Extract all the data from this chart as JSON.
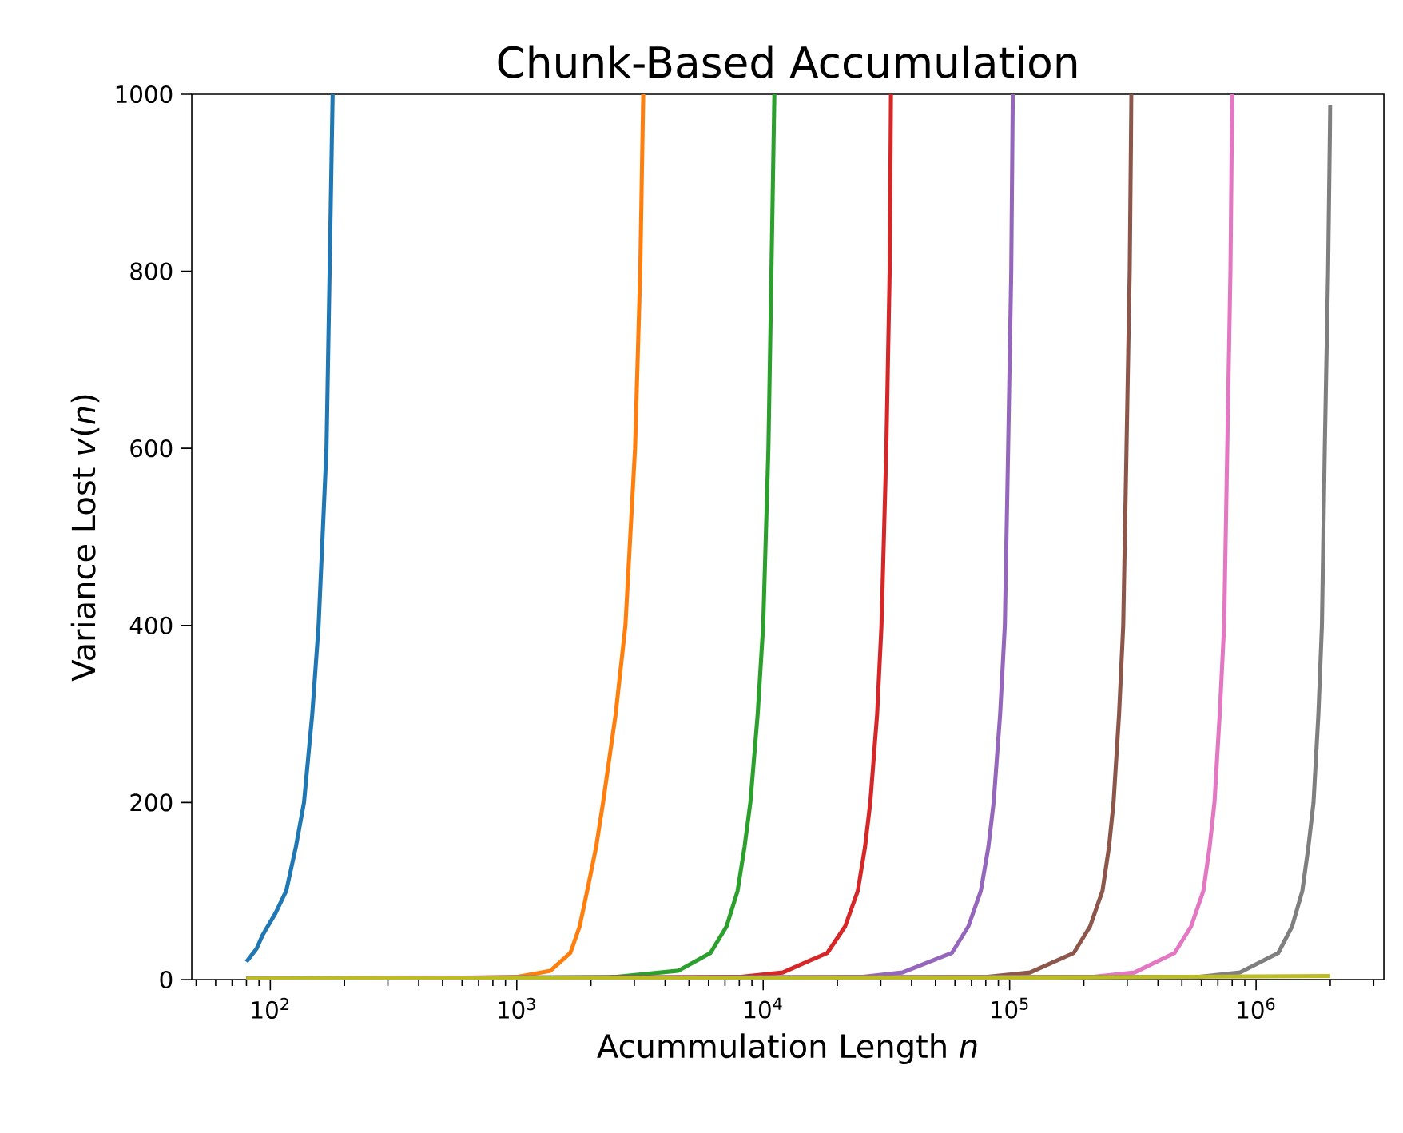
{
  "chart_data": {
    "type": "line",
    "title": "Chunk-Based Accumulation",
    "xlabel": "Acummulation Length *n*",
    "ylabel": "Variance Lost *v*(*n*)",
    "log": "x",
    "xlim": [
      48,
      3300000
    ],
    "ylim": [
      0,
      1000
    ],
    "xticks": [
      {
        "value": 100,
        "label": "10$^{2}$"
      },
      {
        "value": 1000,
        "label": "10$^{3}$"
      },
      {
        "value": 10000,
        "label": "10$^{4}$"
      },
      {
        "value": 100000,
        "label": "10$^{5}$"
      },
      {
        "value": 1000000,
        "label": "10$^{6}$"
      }
    ],
    "yticks": [
      0,
      200,
      400,
      600,
      800,
      1000
    ],
    "marker": "none",
    "line_style": "solid",
    "series": [
      {
        "color": "#1f77b4",
        "x": [
          80,
          88,
          93,
          105,
          116,
          127,
          137,
          148,
          157,
          169,
          174,
          179
        ],
        "values": [
          20,
          35,
          50,
          75,
          100,
          150,
          200,
          300,
          400,
          600,
          800,
          1000
        ]
      },
      {
        "color": "#ff7f0e",
        "x": [
          80,
          600,
          1000,
          1370,
          1650,
          1800,
          1930,
          2100,
          2240,
          2520,
          2760,
          3020,
          3170,
          3260
        ],
        "values": [
          1,
          2,
          3,
          10,
          30,
          60,
          100,
          150,
          200,
          300,
          400,
          600,
          800,
          1000
        ]
      },
      {
        "color": "#2ca02c",
        "x": [
          80,
          2500,
          4530,
          6110,
          7100,
          7870,
          8400,
          8870,
          9500,
          10000,
          10500,
          10800,
          11100
        ],
        "values": [
          1,
          3,
          10,
          30,
          60,
          100,
          150,
          200,
          300,
          400,
          600,
          800,
          1000
        ]
      },
      {
        "color": "#d62728",
        "x": [
          80,
          8000,
          12000,
          18200,
          21500,
          24200,
          25900,
          27200,
          29000,
          30200,
          31600,
          32600,
          33000
        ],
        "values": [
          1,
          3,
          8,
          30,
          60,
          100,
          150,
          200,
          300,
          400,
          600,
          800,
          1000
        ]
      },
      {
        "color": "#9467bd",
        "x": [
          80,
          25000,
          36700,
          58300,
          68000,
          76400,
          82000,
          86100,
          91500,
          95600,
          98600,
          101500,
          103000
        ],
        "values": [
          1,
          3,
          8,
          30,
          60,
          100,
          150,
          200,
          300,
          400,
          600,
          800,
          1000
        ]
      },
      {
        "color": "#8c564b",
        "x": [
          80,
          80000,
          121000,
          182000,
          212000,
          238000,
          253000,
          264000,
          278000,
          289000,
          298000,
          307000,
          312000
        ],
        "values": [
          1,
          3,
          8,
          30,
          60,
          100,
          150,
          200,
          300,
          400,
          600,
          800,
          1000
        ]
      },
      {
        "color": "#e377c2",
        "x": [
          80,
          215000,
          321000,
          467000,
          545000,
          611000,
          648000,
          678000,
          712000,
          742000,
          764000,
          787000,
          800000
        ],
        "values": [
          1,
          3,
          8,
          30,
          60,
          100,
          150,
          200,
          300,
          400,
          600,
          800,
          1000
        ]
      },
      {
        "color": "#7f7f7f",
        "x": [
          80,
          580000,
          861000,
          1230000,
          1400000,
          1540000,
          1630000,
          1710000,
          1790000,
          1850000,
          1900000,
          1960000,
          2000000
        ],
        "values": [
          1,
          3,
          8,
          30,
          60,
          100,
          150,
          200,
          300,
          400,
          600,
          800,
          988
        ]
      },
      {
        "color": "#bcbd22",
        "x": [
          80,
          100000,
          2000000
        ],
        "values": [
          1,
          2,
          4
        ]
      }
    ]
  }
}
